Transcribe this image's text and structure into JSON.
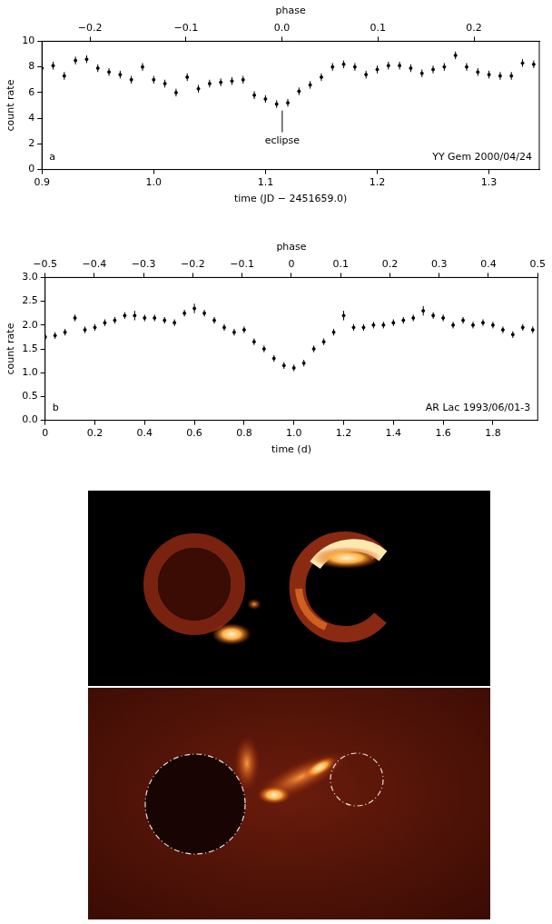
{
  "chart_data": [
    {
      "type": "scatter",
      "panel_label": "a",
      "label": "YY Gem 2000/04/24",
      "xlabel": "time (JD − 2451659.0)",
      "ylabel": "count rate",
      "x2label": "phase",
      "xlim": [
        0.9,
        1.345
      ],
      "xticks": [
        0.9,
        {
          "value": 1,
          "label": "1.0"
        },
        1.1,
        1.2,
        1.3
      ],
      "ylim": [
        0,
        10
      ],
      "yticks": [
        0,
        2,
        4,
        6,
        8,
        10
      ],
      "x2lim": [
        -0.25,
        0.268
      ],
      "x2ticks": [
        {
          "value": -0.2,
          "label": "−0.2"
        },
        {
          "value": -0.1,
          "label": "−0.1"
        },
        {
          "value": 0,
          "label": "0.0"
        },
        0.1,
        0.2
      ],
      "grid": false,
      "color": "#000000",
      "marker": "dot",
      "x": [
        0.9,
        0.91,
        0.92,
        0.93,
        0.94,
        0.95,
        0.96,
        0.97,
        0.98,
        0.99,
        1.0,
        1.01,
        1.02,
        1.03,
        1.04,
        1.05,
        1.06,
        1.07,
        1.08,
        1.09,
        1.1,
        1.11,
        1.12,
        1.13,
        1.14,
        1.15,
        1.16,
        1.17,
        1.18,
        1.19,
        1.2,
        1.21,
        1.22,
        1.23,
        1.24,
        1.25,
        1.26,
        1.27,
        1.28,
        1.29,
        1.3,
        1.31,
        1.32,
        1.33,
        1.34
      ],
      "values": [
        7.9,
        8.1,
        7.3,
        8.5,
        8.6,
        7.9,
        7.6,
        7.4,
        7.0,
        8.0,
        7.0,
        6.7,
        6.0,
        7.2,
        6.3,
        6.7,
        6.8,
        6.9,
        7.0,
        5.8,
        5.5,
        5.1,
        5.2,
        6.1,
        6.6,
        7.2,
        8.0,
        8.2,
        8.0,
        7.4,
        7.8,
        8.1,
        8.1,
        7.9,
        7.5,
        7.8,
        8.0,
        8.9,
        8.0,
        7.6,
        7.4,
        7.3,
        7.3,
        8.3,
        8.2
      ],
      "errors": [
        0.3,
        0.3,
        0.3,
        0.3,
        0.3,
        0.3,
        0.3,
        0.3,
        0.3,
        0.3,
        0.3,
        0.3,
        0.3,
        0.3,
        0.3,
        0.3,
        0.3,
        0.3,
        0.3,
        0.3,
        0.3,
        0.3,
        0.3,
        0.3,
        0.3,
        0.3,
        0.3,
        0.3,
        0.3,
        0.3,
        0.3,
        0.3,
        0.3,
        0.3,
        0.3,
        0.3,
        0.3,
        0.3,
        0.3,
        0.3,
        0.3,
        0.3,
        0.3,
        0.3,
        0.3
      ],
      "annotation": {
        "text": "eclipse",
        "x": 1.115,
        "y_top": 4.6,
        "y_bottom": 2.9
      }
    },
    {
      "type": "scatter",
      "panel_label": "b",
      "label": "AR Lac 1993/06/01-3",
      "xlabel": "time (d)",
      "ylabel": "count rate",
      "x2label": "phase",
      "xlim": [
        0,
        1.98
      ],
      "xticks": [
        0,
        0.2,
        0.4,
        0.6,
        0.8,
        {
          "value": 1,
          "label": "1.0"
        },
        1.2,
        1.4,
        1.6,
        1.8
      ],
      "ylim": [
        0,
        3
      ],
      "yticks": [
        {
          "value": 0,
          "label": "0.0"
        },
        0.5,
        {
          "value": 1,
          "label": "1.0"
        },
        1.5,
        {
          "value": 2,
          "label": "2.0"
        },
        2.5,
        {
          "value": 3,
          "label": "3.0"
        }
      ],
      "x2lim": [
        -0.5,
        0.5
      ],
      "x2ticks": [
        {
          "value": -0.5,
          "label": "−0.5"
        },
        {
          "value": -0.4,
          "label": "−0.4"
        },
        {
          "value": -0.3,
          "label": "−0.3"
        },
        {
          "value": -0.2,
          "label": "−0.2"
        },
        {
          "value": -0.1,
          "label": "−0.1"
        },
        0,
        0.1,
        0.2,
        0.3,
        0.4,
        0.5
      ],
      "grid": false,
      "color": "#000000",
      "marker": "dot",
      "x": [
        0.0,
        0.04,
        0.08,
        0.12,
        0.16,
        0.2,
        0.24,
        0.28,
        0.32,
        0.36,
        0.4,
        0.44,
        0.48,
        0.52,
        0.56,
        0.6,
        0.64,
        0.68,
        0.72,
        0.76,
        0.8,
        0.84,
        0.88,
        0.92,
        0.96,
        1.0,
        1.04,
        1.08,
        1.12,
        1.16,
        1.2,
        1.24,
        1.28,
        1.32,
        1.36,
        1.4,
        1.44,
        1.48,
        1.52,
        1.56,
        1.6,
        1.64,
        1.68,
        1.72,
        1.76,
        1.8,
        1.84,
        1.88,
        1.92,
        1.96
      ],
      "values": [
        1.75,
        1.78,
        1.85,
        2.15,
        1.9,
        1.95,
        2.05,
        2.1,
        2.2,
        2.2,
        2.15,
        2.15,
        2.1,
        2.05,
        2.25,
        2.35,
        2.25,
        2.1,
        1.95,
        1.85,
        1.9,
        1.65,
        1.5,
        1.3,
        1.15,
        1.1,
        1.2,
        1.5,
        1.65,
        1.85,
        2.2,
        1.95,
        1.95,
        2.0,
        2.0,
        2.05,
        2.1,
        2.15,
        2.3,
        2.2,
        2.15,
        2.0,
        2.1,
        2.0,
        2.05,
        2.0,
        1.9,
        1.8,
        1.95,
        1.9
      ],
      "errors": [
        0.07,
        0.07,
        0.07,
        0.07,
        0.07,
        0.07,
        0.07,
        0.07,
        0.07,
        0.1,
        0.07,
        0.07,
        0.07,
        0.07,
        0.07,
        0.1,
        0.07,
        0.07,
        0.07,
        0.07,
        0.07,
        0.07,
        0.07,
        0.07,
        0.07,
        0.07,
        0.07,
        0.07,
        0.07,
        0.07,
        0.1,
        0.07,
        0.07,
        0.07,
        0.07,
        0.07,
        0.07,
        0.07,
        0.1,
        0.07,
        0.07,
        0.07,
        0.07,
        0.07,
        0.07,
        0.07,
        0.07,
        0.07,
        0.07,
        0.07
      ]
    }
  ]
}
